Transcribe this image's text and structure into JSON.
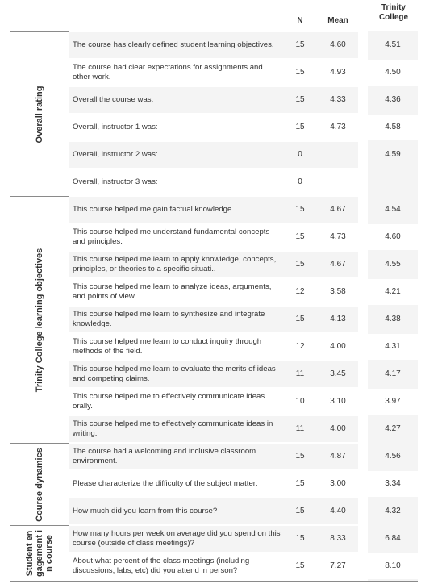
{
  "header": {
    "n_label": "N",
    "mean_label": "Mean",
    "college_label": "Trinity College"
  },
  "sections": [
    {
      "label": "Overall rating",
      "rows": [
        {
          "question": "The course has clearly defined student learning objectives.",
          "n": "15",
          "mean": "4.60",
          "college": "4.51"
        },
        {
          "question": "The course had clear expectations for assignments and other work.",
          "n": "15",
          "mean": "4.93",
          "college": "4.50"
        },
        {
          "question": "Overall the course was:",
          "n": "15",
          "mean": "4.33",
          "college": "4.36"
        },
        {
          "question": "Overall, instructor 1 was:",
          "n": "15",
          "mean": "4.73",
          "college": "4.58"
        },
        {
          "question": "Overall, instructor 2 was:",
          "n": "0",
          "mean": "",
          "college": "4.59"
        },
        {
          "question": "Overall, instructor 3 was:",
          "n": "0",
          "mean": "",
          "college": ""
        }
      ]
    },
    {
      "label": "Trinity College learning objectives",
      "rows": [
        {
          "question": "This course helped me gain factual knowledge.",
          "n": "15",
          "mean": "4.67",
          "college": "4.54"
        },
        {
          "question": "This course helped me understand fundamental concepts and principles.",
          "n": "15",
          "mean": "4.73",
          "college": "4.60"
        },
        {
          "question": "This course helped me learn to apply knowledge, concepts, principles, or theories to a specific situati..",
          "n": "15",
          "mean": "4.67",
          "college": "4.55"
        },
        {
          "question": "This course helped me learn to analyze ideas, arguments, and points of view.",
          "n": "12",
          "mean": "3.58",
          "college": "4.21"
        },
        {
          "question": "This course helped me learn to synthesize and integrate knowledge.",
          "n": "15",
          "mean": "4.13",
          "college": "4.38"
        },
        {
          "question": "This course helped me learn to conduct inquiry through methods of the field.",
          "n": "12",
          "mean": "4.00",
          "college": "4.31"
        },
        {
          "question": "This course helped me learn to evaluate the merits of ideas and competing claims.",
          "n": "11",
          "mean": "3.45",
          "college": "4.17"
        },
        {
          "question": "This course helped me to effectively communicate ideas orally.",
          "n": "10",
          "mean": "3.10",
          "college": "3.97"
        },
        {
          "question": "This course helped me to effectively communicate ideas in writing.",
          "n": "11",
          "mean": "4.00",
          "college": "4.27"
        }
      ]
    },
    {
      "label": "Course dynamics",
      "rows": [
        {
          "question": "The course had a welcoming and inclusive classroom environment.",
          "n": "15",
          "mean": "4.87",
          "college": "4.56"
        },
        {
          "question": "Please characterize the difficulty of the subject matter:",
          "n": "15",
          "mean": "3.00",
          "college": "3.34"
        },
        {
          "question": "How much did you learn from this course?",
          "n": "15",
          "mean": "4.40",
          "college": "4.32"
        }
      ]
    },
    {
      "label": "Student en gagement i n course",
      "label_lines": [
        "Student en",
        "gagement i",
        "n course"
      ],
      "rows": [
        {
          "question": "How many hours per week on average did you spend on this course (outside of class meetings)?",
          "n": "15",
          "mean": "8.33",
          "college": "6.84"
        },
        {
          "question": "About what percent of the class meetings (including discussions, labs, etc) did you attend in person?",
          "n": "15",
          "mean": "7.27",
          "college": "8.10"
        }
      ]
    }
  ]
}
